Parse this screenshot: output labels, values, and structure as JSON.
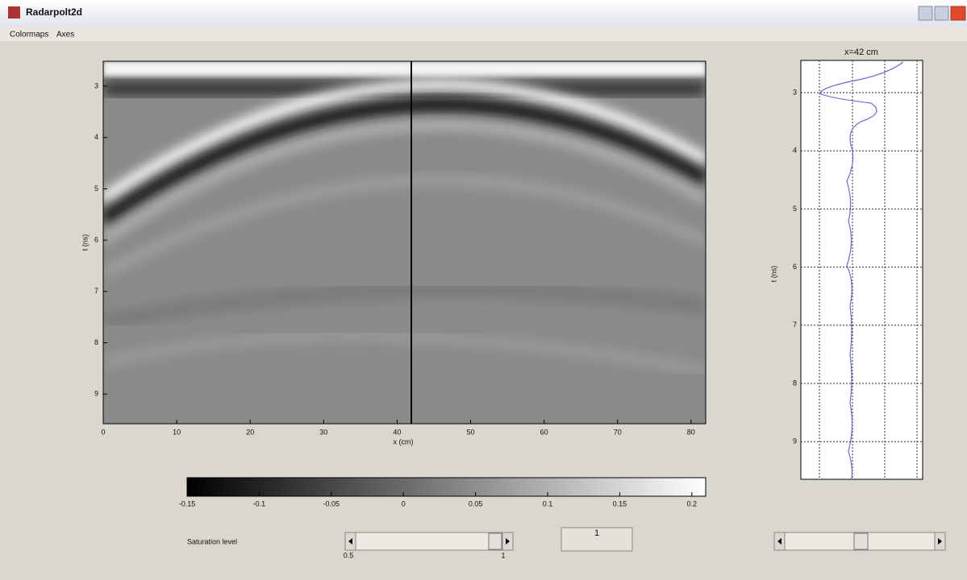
{
  "window": {
    "title": "Radarpolt2d"
  },
  "menu": [
    "Colormaps",
    "Axes"
  ],
  "main_plot": {
    "xticks": [
      "0",
      "10",
      "20",
      "30",
      "40",
      "50",
      "60",
      "70",
      "80"
    ],
    "xlabel": "x (cm)",
    "yticks": [
      "3",
      "4",
      "5",
      "6",
      "7",
      "8",
      "9"
    ],
    "ylabel": "t (ns)"
  },
  "trace_plot": {
    "title": "x=42 cm",
    "yticks": [
      "3",
      "4",
      "5",
      "6",
      "7",
      "8",
      "9"
    ],
    "ylabel": "t (ns)"
  },
  "colorbar": {
    "ticks": [
      "-0.15",
      "-0.1",
      "-0.05",
      "0",
      "0.05",
      "0.1",
      "0.15",
      "0.2"
    ]
  },
  "controls": {
    "saturation_label": "Saturation level",
    "slider_min": "0.5",
    "slider_max": "1",
    "value": "1"
  }
}
